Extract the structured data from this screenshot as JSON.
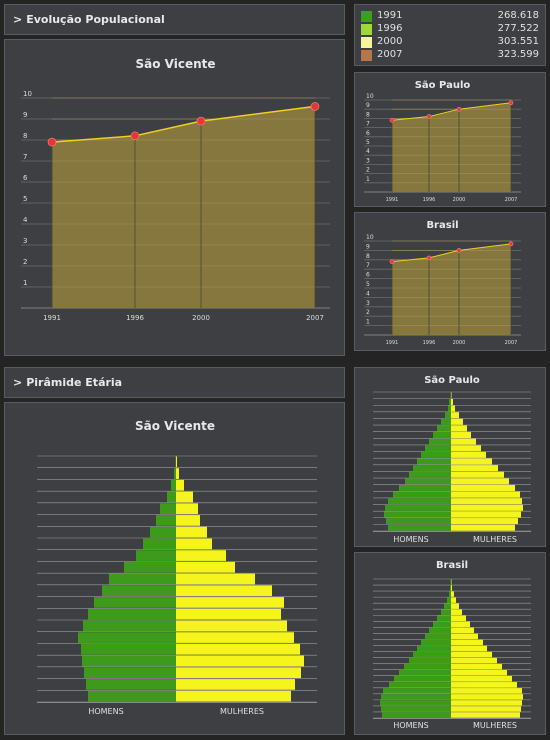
{
  "sections": {
    "evolucao_title": "Evolução Populacional",
    "piramide_title": "Pirâmide Etária"
  },
  "legend": [
    {
      "year": "1991",
      "value": "268.618",
      "color": "#3f9e22"
    },
    {
      "year": "1996",
      "value": "277.522",
      "color": "#9fd83a"
    },
    {
      "year": "2000",
      "value": "303.551",
      "color": "#f7f59a"
    },
    {
      "year": "2007",
      "value": "323.599",
      "color": "#b87545"
    }
  ],
  "chart_data": [
    {
      "type": "area",
      "title": "São Vicente",
      "x": [
        "1991",
        "1996",
        "2000",
        "2007"
      ],
      "values": [
        7.9,
        8.2,
        8.9,
        9.6
      ],
      "ylim": [
        0,
        10
      ],
      "yticks": [
        "1",
        "2",
        "3",
        "4",
        "5",
        "6",
        "7",
        "8",
        "9",
        "10"
      ]
    },
    {
      "type": "area",
      "title": "São Paulo",
      "x": [
        "1991",
        "1996",
        "2000",
        "2007"
      ],
      "values": [
        7.8,
        8.2,
        9.0,
        9.7
      ],
      "ylim": [
        0,
        10
      ],
      "yticks": [
        "1",
        "2",
        "3",
        "4",
        "5",
        "6",
        "7",
        "8",
        "9",
        "10"
      ]
    },
    {
      "type": "area",
      "title": "Brasil",
      "x": [
        "1991",
        "1996",
        "2000",
        "2007"
      ],
      "values": [
        7.8,
        8.2,
        9.0,
        9.7
      ],
      "ylim": [
        0,
        10
      ],
      "yticks": [
        "1",
        "2",
        "3",
        "4",
        "5",
        "6",
        "7",
        "8",
        "9",
        "10"
      ]
    },
    {
      "type": "bar",
      "title": "São Vicente",
      "xlabel_left": "HOMENS",
      "xlabel_right": "MULHERES",
      "homens": [
        0.5,
        2,
        5,
        9,
        16,
        20,
        26,
        33,
        40,
        52,
        67,
        74,
        82,
        88,
        93,
        98,
        95,
        94,
        92,
        90,
        88
      ],
      "mulheres": [
        1,
        3,
        8,
        17,
        22,
        24,
        31,
        36,
        50,
        59,
        79,
        96,
        108,
        105,
        111,
        118,
        124,
        128,
        125,
        119,
        115
      ]
    },
    {
      "type": "bar",
      "title": "São Paulo",
      "xlabel_left": "HOMENS",
      "xlabel_right": "MULHERES",
      "homens": [
        0.5,
        2,
        3,
        6,
        10,
        14,
        18,
        22,
        26,
        30,
        34,
        38,
        42,
        46,
        52,
        58,
        63,
        66,
        67,
        65,
        63
      ],
      "mulheres": [
        0.5,
        2,
        4,
        8,
        12,
        16,
        20,
        25,
        30,
        35,
        41,
        47,
        53,
        58,
        64,
        69,
        71,
        72,
        70,
        67,
        64
      ]
    },
    {
      "type": "bar",
      "title": "Brasil",
      "xlabel_left": "HOMENS",
      "xlabel_right": "MULHERES",
      "homens": [
        0.5,
        1,
        2,
        4,
        7,
        10,
        14,
        18,
        22,
        26,
        30,
        34,
        38,
        42,
        47,
        52,
        57,
        62,
        68,
        70,
        71,
        70,
        69
      ],
      "mulheres": [
        0.5,
        1,
        3,
        5,
        8,
        11,
        15,
        19,
        23,
        27,
        32,
        36,
        41,
        46,
        51,
        56,
        61,
        66,
        71,
        72,
        71,
        70,
        69
      ]
    }
  ]
}
